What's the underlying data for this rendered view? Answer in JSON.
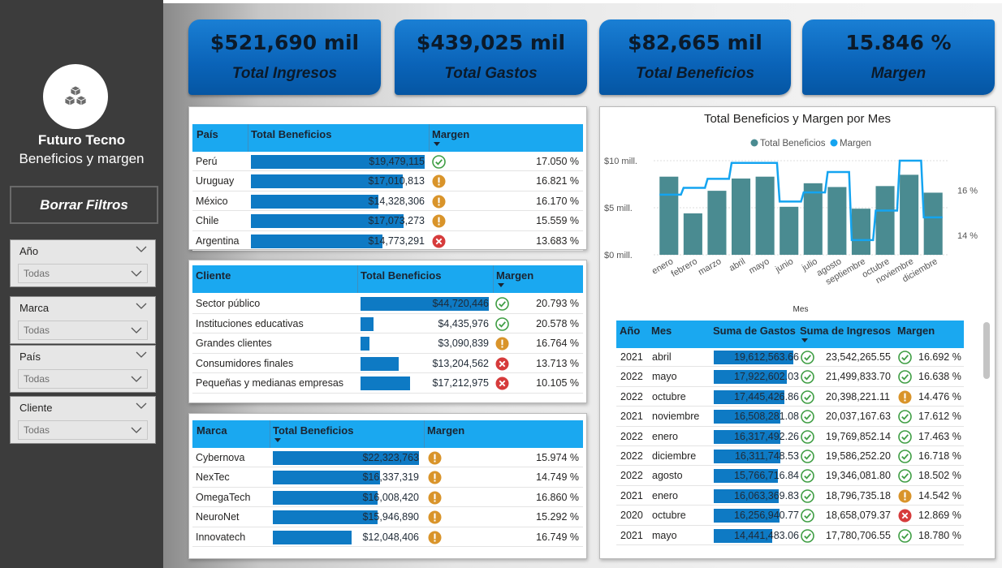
{
  "app": {
    "name": "Futuro Tecno",
    "subtitle": "Beneficios y margen",
    "clear_filters": "Borrar Filtros",
    "logo_icon": "cubes-icon"
  },
  "slicers": [
    {
      "label": "Año",
      "value": "Todas"
    },
    {
      "label": "Marca",
      "value": "Todas"
    },
    {
      "label": "País",
      "value": "Todas"
    },
    {
      "label": "Cliente",
      "value": "Todas"
    }
  ],
  "kpis": [
    {
      "value": "$521,690 mil",
      "label": "Total Ingresos"
    },
    {
      "value": "$439,025 mil",
      "label": "Total Gastos"
    },
    {
      "value": "$82,665 mil",
      "label": "Total Beneficios"
    },
    {
      "value": "15.846 %",
      "label": "Margen"
    }
  ],
  "colors": {
    "accent": "#1aa8f0",
    "bar": "#0e7ac4",
    "chart_bar": "#4a8b91",
    "chart_line": "#14a4f0",
    "ok": "#3f9e44",
    "warn": "#d9942a",
    "bad": "#d63b3b"
  },
  "country_table": {
    "headers": [
      "País",
      "Total Beneficios",
      "Margen"
    ],
    "max": 19479115,
    "rows": [
      {
        "name": "Perú",
        "value": 19479115,
        "label": "$19,479,115",
        "status": "ok",
        "margin": "17.050 %"
      },
      {
        "name": "Uruguay",
        "value": 17010813,
        "label": "$17,010,813",
        "status": "warn",
        "margin": "16.821 %"
      },
      {
        "name": "México",
        "value": 14328306,
        "label": "$14,328,306",
        "status": "warn",
        "margin": "16.170 %"
      },
      {
        "name": "Chile",
        "value": 17073273,
        "label": "$17,073,273",
        "status": "warn",
        "margin": "15.559 %"
      },
      {
        "name": "Argentina",
        "value": 14773291,
        "label": "$14,773,291",
        "status": "bad",
        "margin": "13.683 %"
      }
    ]
  },
  "client_table": {
    "headers": [
      "Cliente",
      "Total Beneficios",
      "Margen"
    ],
    "max": 44720446,
    "rows": [
      {
        "name": "Sector público",
        "value": 44720446,
        "label": "$44,720,446",
        "status": "ok",
        "margin": "20.793 %"
      },
      {
        "name": "Instituciones educativas",
        "value": 4435976,
        "label": "$4,435,976",
        "status": "ok",
        "margin": "20.578 %"
      },
      {
        "name": "Grandes clientes",
        "value": 3090839,
        "label": "$3,090,839",
        "status": "warn",
        "margin": "16.764 %"
      },
      {
        "name": "Consumidores finales",
        "value": 13204562,
        "label": "$13,204,562",
        "status": "bad",
        "margin": "13.713 %"
      },
      {
        "name": "Pequeñas y medianas empresas",
        "value": 17212975,
        "label": "$17,212,975",
        "status": "bad",
        "margin": "10.105 %"
      }
    ]
  },
  "brand_table": {
    "headers": [
      "Marca",
      "Total Beneficios",
      "Margen"
    ],
    "max": 22323763,
    "rows": [
      {
        "name": "Cybernova",
        "value": 22323763,
        "label": "$22,323,763",
        "status": "warn",
        "margin": "15.974 %"
      },
      {
        "name": "NexTec",
        "value": 16337319,
        "label": "$16,337,319",
        "status": "warn",
        "margin": "14.749 %"
      },
      {
        "name": "OmegaTech",
        "value": 16008420,
        "label": "$16,008,420",
        "status": "warn",
        "margin": "16.860 %"
      },
      {
        "name": "NeuroNet",
        "value": 15946890,
        "label": "$15,946,890",
        "status": "warn",
        "margin": "15.292 %"
      },
      {
        "name": "Innovatech",
        "value": 12048406,
        "label": "$12,048,406",
        "status": "warn",
        "margin": "16.749 %"
      }
    ]
  },
  "chart_data": {
    "type": "bar",
    "title": "Total Beneficios y Margen por Mes",
    "xlabel": "Mes",
    "categories": [
      "enero",
      "febrero",
      "marzo",
      "abril",
      "mayo",
      "junio",
      "julio",
      "agosto",
      "septiembre",
      "octubre",
      "noviembre",
      "diciembre"
    ],
    "series": [
      {
        "name": "Total Beneficios",
        "type": "bar",
        "axis": "left",
        "values": [
          8.3,
          4.4,
          6.8,
          8.1,
          8.3,
          5.1,
          7.6,
          7.2,
          4.9,
          7.3,
          8.5,
          6.6
        ]
      },
      {
        "name": "Margen",
        "type": "step-line",
        "axis": "right",
        "values": [
          15.8,
          16.1,
          16.5,
          17.2,
          17.2,
          15.5,
          15.9,
          16.8,
          13.8,
          15.1,
          17.3,
          14.8
        ]
      }
    ],
    "y_left": {
      "ticks": [
        "$0 mill.",
        "$5 mill.",
        "$10 mill."
      ],
      "range": [
        0,
        10
      ]
    },
    "y_right": {
      "ticks": [
        "14 %",
        "16 %"
      ],
      "range": [
        13.15,
        17.3
      ]
    },
    "legend_position": "top-center"
  },
  "month_table": {
    "headers": [
      "Año",
      "Mes",
      "Suma de Gastos",
      "Suma de Ingresos",
      "Margen"
    ],
    "max_gastos": 19612563.66,
    "rows": [
      {
        "year": "2021",
        "month": "abril",
        "gastos": 19612563.66,
        "gastos_label": "19,612,563.66",
        "ingresos": "23,542,265.55",
        "status": "ok",
        "margin": "16.692 %"
      },
      {
        "year": "2022",
        "month": "mayo",
        "gastos": 17922602.03,
        "gastos_label": "17,922,602.03",
        "ingresos": "21,499,833.70",
        "status": "ok",
        "margin": "16.638 %"
      },
      {
        "year": "2022",
        "month": "octubre",
        "gastos": 17445426.86,
        "gastos_label": "17,445,426.86",
        "ingresos": "20,398,221.11",
        "status": "warn",
        "margin": "14.476 %"
      },
      {
        "year": "2021",
        "month": "noviembre",
        "gastos": 16508281.08,
        "gastos_label": "16,508,281.08",
        "ingresos": "20,037,167.63",
        "status": "ok",
        "margin": "17.612 %"
      },
      {
        "year": "2022",
        "month": "enero",
        "gastos": 16317492.26,
        "gastos_label": "16,317,492.26",
        "ingresos": "19,769,852.14",
        "status": "ok",
        "margin": "17.463 %"
      },
      {
        "year": "2022",
        "month": "diciembre",
        "gastos": 16311748.53,
        "gastos_label": "16,311,748.53",
        "ingresos": "19,586,252.20",
        "status": "ok",
        "margin": "16.718 %"
      },
      {
        "year": "2022",
        "month": "agosto",
        "gastos": 15766716.84,
        "gastos_label": "15,766,716.84",
        "ingresos": "19,346,081.80",
        "status": "ok",
        "margin": "18.502 %"
      },
      {
        "year": "2021",
        "month": "enero",
        "gastos": 16063369.83,
        "gastos_label": "16,063,369.83",
        "ingresos": "18,796,735.18",
        "status": "warn",
        "margin": "14.542 %"
      },
      {
        "year": "2020",
        "month": "octubre",
        "gastos": 16256940.77,
        "gastos_label": "16,256,940.77",
        "ingresos": "18,658,079.37",
        "status": "bad",
        "margin": "12.869 %"
      },
      {
        "year": "2021",
        "month": "mayo",
        "gastos": 14441483.06,
        "gastos_label": "14,441,483.06",
        "ingresos": "17,780,706.55",
        "status": "ok",
        "margin": "18.780 %"
      }
    ]
  }
}
